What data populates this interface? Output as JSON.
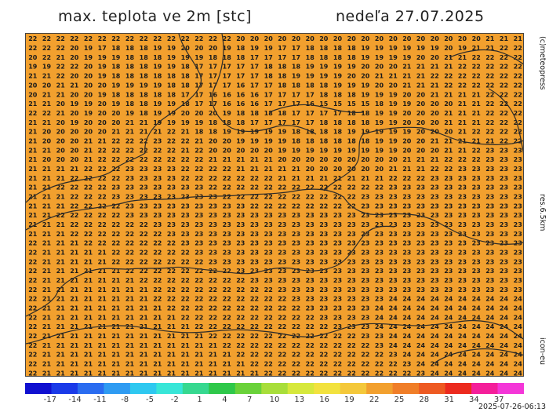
{
  "header": {
    "title": "max. teplota ve 2m [stc]",
    "date": "nedeľa 27.07.2025"
  },
  "side_labels": {
    "credit": "(c)meteopress",
    "resolution": "res.6.5km",
    "model": "icon-eu"
  },
  "footer": {
    "timestamp": "2025-07-26-06:13"
  },
  "map": {
    "background_color": "#f2a02e",
    "border_color": "#3a3a3a",
    "value_color": "#1a1a1a",
    "grid": {
      "columns": 36,
      "rows": 37,
      "values": [
        "222222222222222222222222222222202020202020202020202020202020202020212121212121222222222222222222222222",
        "222222201917181818191920202019181919171718181818191919191919201921212222212222222222222222222222",
        "202221201919191818181919191818181717171718181818191919192020212122222222222222222222222222222222",
        "191922222019181818191918171717171718181819191919202020212121212222222222222222222222222222222222",
        "212122202019181818181818171717171718181919191920202121212122222222222222222222222222222222222222",
        "202021212020191919191818171717161717181818181919192020212121222222222222222222222222222222222222",
        "202121202019181818181817171616161617171717181818191919202021212121222222212121212222222222212121",
        "212120191920191818191918171716161617171716151515151819192020202121222222222222212121192021212121",
        "222221201920201918191920202019181818181717171718181919202020212121222222222222222222222222222222",
        "212120192020202121191919191818181717171717181818181919202020212121222222222222222222222222212020",
        "212020202020212121212221181819191919191818181819191919192020202122222222232323232323232323212121",
        "212020202121222222232222212020191919191818181818181919202021212121212222232323232323232323212121",
        "212120202122222222222221222020202020191919191919191919202020212122232323232323232323232323212121",
        "212020202122222222222222222121212121202020202020202020212121222222232323232323232323232323232323",
        "212121212222222323232322222222212121212120202020202021212122222323232323232323232323232323232323",
        "212121222222222323232322222222222222212121212121212122222223232323232323232323232323232323232323",
        "212122222222232323232323232222222222222222222222222223232323232323232323232323232323232323232323",
        "212121222222232323232323232322222222222222222222232323232323232323232323232323232323232323232323",
        "212121222222222323232323232323232222222222222222232323232323232323232323232323232323232323232323",
        "212122222222222323232323232323232323232323232323232323232323232323232323232323232323232323232323",
        "212121222222222222232323232323232323232323232323232323232323232323232323232323232323232323232323",
        "212121222222222222222323232323232323232323232323232323232323232323232323232323232323232323232323",
        "222121212222222222222223232323232323232323232323232323232323232323232323232323232323232323232323",
        "222121212121222222222222232323232323232323232323232323232323232323232323232323232323232323242424",
        "222121212121222222222222222323232323232323232323232323232323232323232323232323232323232324242424",
        "222121212121212222222222222222232323232323232323232323232323232323232323232323232323232424242424",
        "222121212121212122222222222222222323232323232323232323232323232323232323232323232323232424242424",
        "222121212121212121222222222222222222232323232323232323232323232323232323232323232323242424242424",
        "222121212121212121222222222222222222222323232323232324242424242424242424242323232323242424242424",
        "222121212121212121212222222222222222222223232323232424242424242424242424242424242424242424242424",
        "222121212121212121212122222222222222222222232323232424242424242424242424242424242424242424242424",
        "222121212121212121212121222222222222222222222323232424242424242424242424242424242424242424242525",
        "222121212121212121212121212222222222222222222222232324242424242424242424242424242424242424242525",
        "222121212121212121212121212122222222222222222222222324242424242424242424242424242424242424242525",
        "222121212121212121212121212121222222222222222222222223242424242424242424242424242424242424242525",
        "222121212121212121212121212121212222222222222222222222232424242424242424242424242424242424252525",
        "222121212121212121212121212121212122222222222222222222222324242424242424242424242424242424252525"
      ]
    }
  },
  "colorbar": {
    "ticks": [
      "-17",
      "-14",
      "-11",
      "-8",
      "-5",
      "-2",
      "1",
      "4",
      "7",
      "10",
      "13",
      "16",
      "19",
      "22",
      "25",
      "28",
      "31",
      "34",
      "37"
    ],
    "colors": [
      "#1010d0",
      "#1a3ae8",
      "#2a6cf0",
      "#2e9bf2",
      "#2ec8f0",
      "#38e6d8",
      "#36d890",
      "#2ec84a",
      "#6ad23a",
      "#a8de3a",
      "#d6e83c",
      "#f2e23e",
      "#f4c83a",
      "#f2a02e",
      "#f07e28",
      "#ee5a22",
      "#ec2a1e",
      "#f41e9a",
      "#f436d8"
    ]
  }
}
